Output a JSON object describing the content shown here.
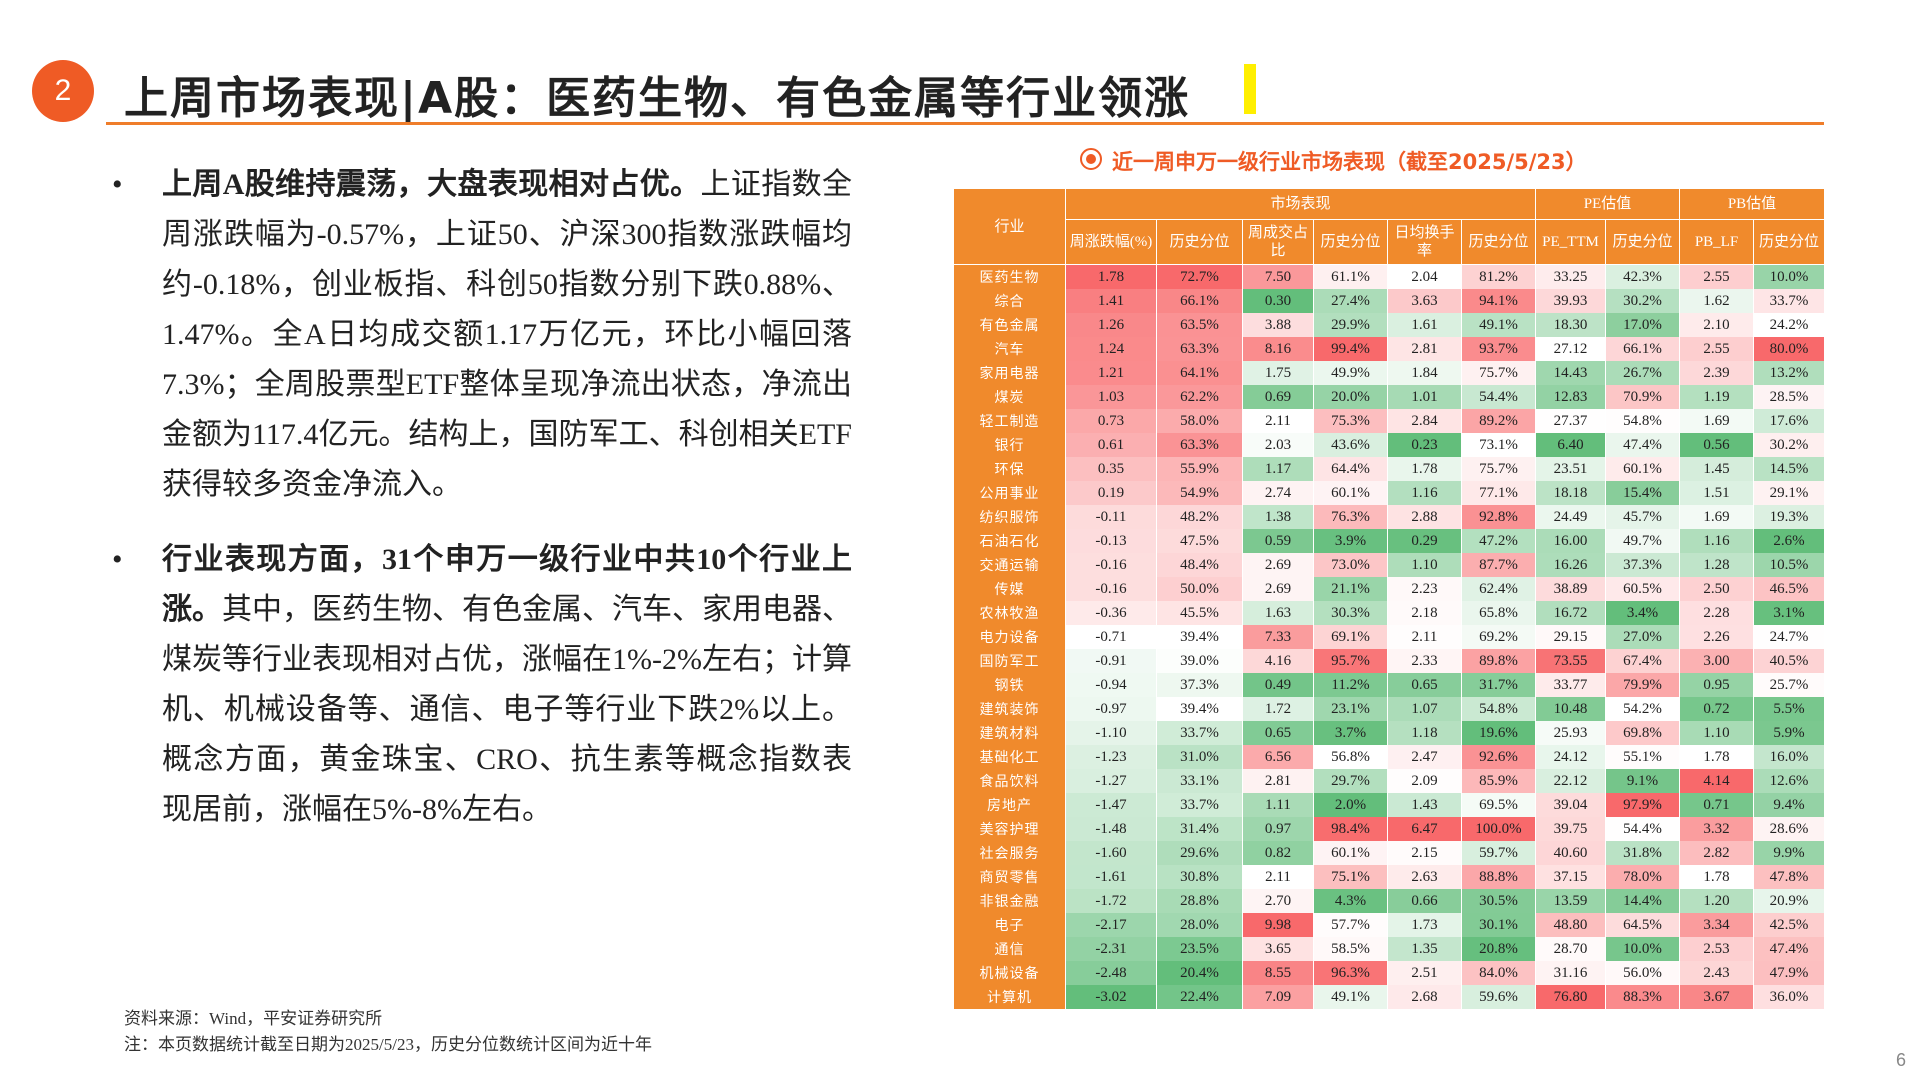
{
  "header": {
    "number": "2",
    "title": "上周市场表现|A股：医药生物、有色金属等行业领涨"
  },
  "bullets": [
    {
      "bold": "上周A股维持震荡，大盘表现相对占优。",
      "text": "上证指数全周涨跌幅为-0.57%，上证50、沪深300指数涨跌幅均约-0.18%，创业板指、科创50指数分别下跌0.88%、1.47%。全A日均成交额1.17万亿元，环比小幅回落7.3%；全周股票型ETF整体呈现净流出状态，净流出金额为117.4亿元。结构上，国防军工、科创相关ETF获得较多资金净流入。"
    },
    {
      "bold": "行业表现方面，31个申万一级行业中共10个行业上涨。",
      "text": "其中，医药生物、有色金属、汽车、家用电器、煤炭等行业表现相对占优，涨幅在1%-2%左右；计算机、机械设备等、通信、电子等行业下跌2%以上。概念方面，黄金珠宝、CRO、抗生素等概念指数表现居前，涨幅在5%-8%左右。"
    }
  ],
  "table": {
    "caption": "近一周申万一级行业市场表现（截至2025/5/23）",
    "corner": "行业",
    "groups": [
      "市场表现",
      "PE估值",
      "PB估值"
    ],
    "columns": [
      "周涨跌幅(%)",
      "历史分位",
      "周成交占比",
      "历史分位",
      "日均换手率",
      "历史分位",
      "PE_TTM",
      "历史分位",
      "PB_LF",
      "历史分位"
    ],
    "rows": [
      [
        "医药生物",
        "1.78",
        "72.7%",
        "7.50",
        "61.1%",
        "2.04",
        "81.2%",
        "33.25",
        "42.3%",
        "2.55",
        "10.0%"
      ],
      [
        "综合",
        "1.41",
        "66.1%",
        "0.30",
        "27.4%",
        "3.63",
        "94.1%",
        "39.93",
        "30.2%",
        "1.62",
        "33.7%"
      ],
      [
        "有色金属",
        "1.26",
        "63.5%",
        "3.88",
        "29.9%",
        "1.61",
        "49.1%",
        "18.30",
        "17.0%",
        "2.10",
        "24.2%"
      ],
      [
        "汽车",
        "1.24",
        "63.3%",
        "8.16",
        "99.4%",
        "2.81",
        "93.7%",
        "27.12",
        "66.1%",
        "2.55",
        "80.0%"
      ],
      [
        "家用电器",
        "1.21",
        "64.1%",
        "1.75",
        "49.9%",
        "1.84",
        "75.7%",
        "14.43",
        "26.7%",
        "2.39",
        "13.2%"
      ],
      [
        "煤炭",
        "1.03",
        "62.2%",
        "0.69",
        "20.0%",
        "1.01",
        "54.4%",
        "12.83",
        "70.9%",
        "1.19",
        "28.5%"
      ],
      [
        "轻工制造",
        "0.73",
        "58.0%",
        "2.11",
        "75.3%",
        "2.84",
        "89.2%",
        "27.37",
        "54.8%",
        "1.69",
        "17.6%"
      ],
      [
        "银行",
        "0.61",
        "63.3%",
        "2.03",
        "43.6%",
        "0.23",
        "73.1%",
        "6.40",
        "47.4%",
        "0.56",
        "30.2%"
      ],
      [
        "环保",
        "0.35",
        "55.9%",
        "1.17",
        "64.4%",
        "1.78",
        "75.7%",
        "23.51",
        "60.1%",
        "1.45",
        "14.5%"
      ],
      [
        "公用事业",
        "0.19",
        "54.9%",
        "2.74",
        "60.1%",
        "1.16",
        "77.1%",
        "18.18",
        "15.4%",
        "1.51",
        "29.1%"
      ],
      [
        "纺织服饰",
        "-0.11",
        "48.2%",
        "1.38",
        "76.3%",
        "2.88",
        "92.8%",
        "24.49",
        "45.7%",
        "1.69",
        "19.3%"
      ],
      [
        "石油石化",
        "-0.13",
        "47.5%",
        "0.59",
        "3.9%",
        "0.29",
        "47.2%",
        "16.00",
        "49.7%",
        "1.16",
        "2.6%"
      ],
      [
        "交通运输",
        "-0.16",
        "48.4%",
        "2.69",
        "73.0%",
        "1.10",
        "87.7%",
        "16.26",
        "37.3%",
        "1.28",
        "10.5%"
      ],
      [
        "传媒",
        "-0.16",
        "50.0%",
        "2.69",
        "21.1%",
        "2.23",
        "62.4%",
        "38.89",
        "60.5%",
        "2.50",
        "46.5%"
      ],
      [
        "农林牧渔",
        "-0.36",
        "45.5%",
        "1.63",
        "30.3%",
        "2.18",
        "65.8%",
        "16.72",
        "3.4%",
        "2.28",
        "3.1%"
      ],
      [
        "电力设备",
        "-0.71",
        "39.4%",
        "7.33",
        "69.1%",
        "2.11",
        "69.2%",
        "29.15",
        "27.0%",
        "2.26",
        "24.7%"
      ],
      [
        "国防军工",
        "-0.91",
        "39.0%",
        "4.16",
        "95.7%",
        "2.33",
        "89.8%",
        "73.55",
        "67.4%",
        "3.00",
        "40.5%"
      ],
      [
        "钢铁",
        "-0.94",
        "37.3%",
        "0.49",
        "11.2%",
        "0.65",
        "31.7%",
        "33.77",
        "79.9%",
        "0.95",
        "25.7%"
      ],
      [
        "建筑装饰",
        "-0.97",
        "39.4%",
        "1.72",
        "23.1%",
        "1.07",
        "54.8%",
        "10.48",
        "54.2%",
        "0.72",
        "5.5%"
      ],
      [
        "建筑材料",
        "-1.10",
        "33.7%",
        "0.65",
        "3.7%",
        "1.18",
        "19.6%",
        "25.93",
        "69.8%",
        "1.10",
        "5.9%"
      ],
      [
        "基础化工",
        "-1.23",
        "31.0%",
        "6.56",
        "56.8%",
        "2.47",
        "92.6%",
        "24.12",
        "55.1%",
        "1.78",
        "16.0%"
      ],
      [
        "食品饮料",
        "-1.27",
        "33.1%",
        "2.81",
        "29.7%",
        "2.09",
        "85.9%",
        "22.12",
        "9.1%",
        "4.14",
        "12.6%"
      ],
      [
        "房地产",
        "-1.47",
        "33.7%",
        "1.11",
        "2.0%",
        "1.43",
        "69.5%",
        "39.04",
        "97.9%",
        "0.71",
        "9.4%"
      ],
      [
        "美容护理",
        "-1.48",
        "31.4%",
        "0.97",
        "98.4%",
        "6.47",
        "100.0%",
        "39.75",
        "54.4%",
        "3.32",
        "28.6%"
      ],
      [
        "社会服务",
        "-1.60",
        "29.6%",
        "0.82",
        "60.1%",
        "2.15",
        "59.7%",
        "40.60",
        "31.8%",
        "2.82",
        "9.9%"
      ],
      [
        "商贸零售",
        "-1.61",
        "30.8%",
        "2.11",
        "75.1%",
        "2.63",
        "88.8%",
        "37.15",
        "78.0%",
        "1.78",
        "47.8%"
      ],
      [
        "非银金融",
        "-1.72",
        "28.8%",
        "2.70",
        "4.3%",
        "0.66",
        "30.5%",
        "13.59",
        "14.4%",
        "1.20",
        "20.9%"
      ],
      [
        "电子",
        "-2.17",
        "28.0%",
        "9.98",
        "57.7%",
        "1.73",
        "30.1%",
        "48.80",
        "64.5%",
        "3.34",
        "42.5%"
      ],
      [
        "通信",
        "-2.31",
        "23.5%",
        "3.65",
        "58.5%",
        "1.35",
        "20.8%",
        "28.70",
        "10.0%",
        "2.53",
        "47.4%"
      ],
      [
        "机械设备",
        "-2.48",
        "20.4%",
        "8.55",
        "96.3%",
        "2.51",
        "84.0%",
        "31.16",
        "56.0%",
        "2.43",
        "47.9%"
      ],
      [
        "计算机",
        "-3.02",
        "22.4%",
        "7.09",
        "49.1%",
        "2.68",
        "59.6%",
        "76.80",
        "88.3%",
        "3.67",
        "36.0%"
      ]
    ]
  },
  "notes": [
    "资料来源：Wind，平安证券研究所",
    "注：本页数据统计截至日期为2025/5/23，历史分位数统计区间为近十年"
  ],
  "page_number": "6"
}
